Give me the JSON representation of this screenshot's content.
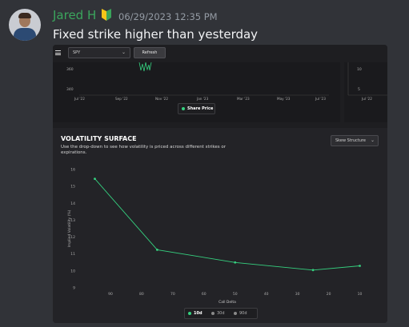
{
  "message": {
    "username": "Jared H",
    "badge_icon": "beginner-badge-icon",
    "timestamp": "06/29/2023 12:35 PM",
    "text": "Fixed strike higher than yesterday"
  },
  "toolbar": {
    "ticker": "SPY",
    "refresh_label": "Refresh"
  },
  "price_chart": {
    "y_ticks": [
      "360",
      "340"
    ],
    "x_ticks": [
      "Jul '22",
      "Sep '22",
      "Nov '22",
      "Jan '23",
      "Mar '23",
      "May '23",
      "Jul '23"
    ],
    "legend": "Share Price"
  },
  "right_chart": {
    "y_ticks": [
      "10",
      "5"
    ],
    "x_ticks": [
      "Jul '22"
    ]
  },
  "volatility": {
    "title": "VOLATILITY SURFACE",
    "description": "Use the drop-down to see how volatility is priced across different strikes or expirations.",
    "dropdown": "Skew Structure",
    "legend": [
      {
        "name": "10d",
        "active": true
      },
      {
        "name": "30d",
        "active": false
      },
      {
        "name": "90d",
        "active": false
      }
    ]
  },
  "colors": {
    "accent": "#35d07f",
    "username": "#3ba55d"
  },
  "chart_data": {
    "type": "line",
    "title": "VOLATILITY SURFACE",
    "xlabel": "Call Delta",
    "ylabel": "Implied Volatility (%)",
    "x_reversed": true,
    "xlim": [
      100,
      5
    ],
    "ylim": [
      9,
      16
    ],
    "x_ticks": [
      "90",
      "80",
      "70",
      "60",
      "50",
      "40",
      "30",
      "20",
      "10"
    ],
    "y_ticks": [
      "16",
      "15",
      "14",
      "13",
      "12",
      "11",
      "10",
      "9"
    ],
    "grid": false,
    "legend_position": "bottom",
    "series": [
      {
        "name": "10d",
        "x": [
          95,
          75,
          50,
          25,
          10
        ],
        "y": [
          15.45,
          11.25,
          10.5,
          10.05,
          10.3
        ]
      }
    ]
  }
}
